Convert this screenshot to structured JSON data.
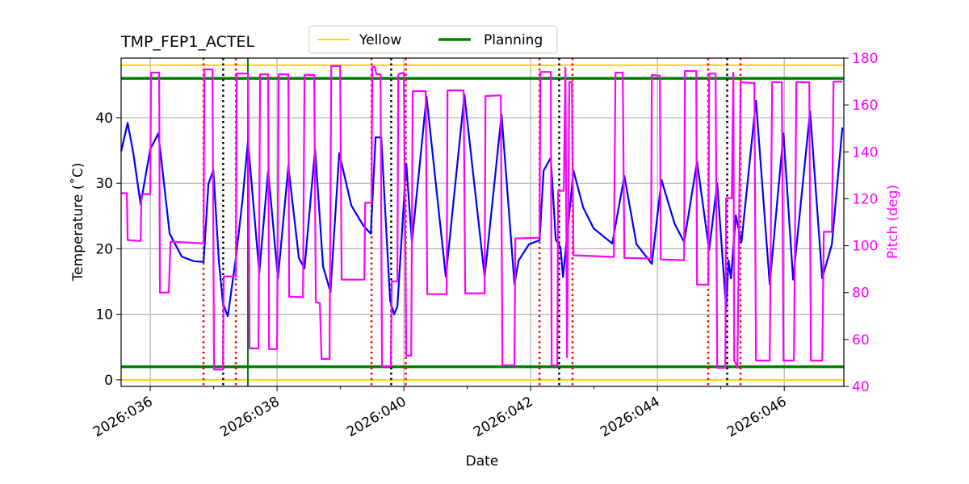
{
  "chart_data": {
    "type": "line",
    "title": "TMP_FEP1_ACTEL",
    "xlabel": "Date",
    "ylabel": "Temperature ($^\\circ$C)",
    "ylabel_display": "Temperature (˚C)",
    "y2label": "Pitch (deg)",
    "xlim": [
      35.54,
      46.94
    ],
    "ylim": [
      -1,
      49.1
    ],
    "y2lim": [
      40,
      180
    ],
    "x_ticks": [
      36,
      38,
      40,
      42,
      44,
      46
    ],
    "x_tick_labels": [
      "2026:036",
      "2026:038",
      "2026:040",
      "2026:042",
      "2026:044",
      "2026:046"
    ],
    "x_minor_ticks": [
      37,
      39,
      41,
      43,
      45
    ],
    "y_ticks": [
      0,
      10,
      20,
      30,
      40
    ],
    "y_tick_labels": [
      "0",
      "10",
      "20",
      "30",
      "40"
    ],
    "y2_ticks": [
      40,
      60,
      80,
      100,
      120,
      140,
      160,
      180
    ],
    "y2_tick_labels": [
      "40",
      "60",
      "80",
      "100",
      "120",
      "140",
      "160",
      "180"
    ],
    "grid": true,
    "legend": {
      "placement": "top-center",
      "entries": [
        {
          "name": "Yellow",
          "color": "#ffd700"
        },
        {
          "name": "Planning",
          "color": "#008000"
        }
      ]
    },
    "colors": {
      "temperature": "#0000ff",
      "pitch": "#ff00ff",
      "yellow": "#ffd700",
      "planning": "#008000",
      "red_lines": "#ff0000",
      "black_lines": "#000000",
      "grid": "#b0b0b0"
    },
    "limits": {
      "yellow": [
        0,
        48
      ],
      "planning": [
        2,
        46
      ]
    },
    "vlines": {
      "green": [
        37.54
      ],
      "red_dotted": [
        36.84,
        37.35,
        39.49,
        40.03,
        42.14,
        42.66,
        44.8,
        45.31
      ],
      "black_dotted": [
        37.15,
        39.8,
        42.45,
        45.1
      ]
    },
    "series": [
      {
        "axis": "left",
        "values": [
          [
            35.541,
            34.9
          ],
          [
            35.643,
            39.2
          ],
          [
            35.732,
            34.6
          ],
          [
            35.847,
            26.8
          ],
          [
            36.0,
            35.2
          ],
          [
            36.127,
            37.6
          ],
          [
            36.306,
            22.3
          ],
          [
            36.497,
            18.8
          ],
          [
            36.688,
            18.1
          ],
          [
            36.841,
            18.0
          ],
          [
            36.917,
            29.9
          ],
          [
            36.994,
            32.0
          ],
          [
            37.083,
            18.0
          ],
          [
            37.146,
            11.7
          ],
          [
            37.223,
            9.7
          ],
          [
            37.35,
            18.6
          ],
          [
            37.452,
            27.2
          ],
          [
            37.541,
            36.4
          ],
          [
            37.72,
            16.4
          ],
          [
            37.86,
            31.9
          ],
          [
            38.013,
            15.5
          ],
          [
            38.178,
            32.6
          ],
          [
            38.344,
            18.6
          ],
          [
            38.433,
            17.0
          ],
          [
            38.599,
            35.2
          ],
          [
            38.726,
            17.3
          ],
          [
            38.841,
            13.4
          ],
          [
            38.981,
            34.6
          ],
          [
            39.172,
            26.6
          ],
          [
            39.363,
            23.5
          ],
          [
            39.478,
            22.3
          ],
          [
            39.554,
            37.0
          ],
          [
            39.643,
            37.0
          ],
          [
            39.783,
            12.1
          ],
          [
            39.847,
            10.0
          ],
          [
            39.898,
            11.2
          ],
          [
            40.038,
            33.0
          ],
          [
            40.127,
            21.0
          ],
          [
            40.357,
            43.2
          ],
          [
            40.662,
            15.7
          ],
          [
            40.955,
            43.5
          ],
          [
            41.274,
            15.7
          ],
          [
            41.541,
            40.5
          ],
          [
            41.745,
            14.6
          ],
          [
            41.809,
            18.2
          ],
          [
            41.975,
            20.7
          ],
          [
            42.14,
            21.3
          ],
          [
            42.204,
            31.9
          ],
          [
            42.318,
            33.9
          ],
          [
            42.395,
            21.4
          ],
          [
            42.471,
            20.2
          ],
          [
            42.51,
            15.7
          ],
          [
            42.675,
            31.9
          ],
          [
            42.828,
            26.3
          ],
          [
            42.994,
            23.1
          ],
          [
            43.287,
            20.8
          ],
          [
            43.478,
            31.1
          ],
          [
            43.669,
            20.7
          ],
          [
            43.911,
            17.7
          ],
          [
            44.064,
            30.5
          ],
          [
            44.268,
            23.9
          ],
          [
            44.42,
            21.0
          ],
          [
            44.624,
            33.3
          ],
          [
            44.815,
            19.8
          ],
          [
            44.943,
            30.0
          ],
          [
            45.083,
            10.9
          ],
          [
            45.121,
            18.2
          ],
          [
            45.159,
            15.5
          ],
          [
            45.236,
            25.1
          ],
          [
            45.325,
            21.0
          ],
          [
            45.554,
            42.6
          ],
          [
            45.771,
            14.6
          ],
          [
            45.987,
            37.6
          ],
          [
            46.14,
            15.3
          ],
          [
            46.408,
            41.0
          ],
          [
            46.599,
            15.5
          ],
          [
            46.752,
            20.7
          ],
          [
            46.917,
            38.5
          ]
        ]
      },
      {
        "axis": "right",
        "values": [
          [
            35.541,
            122.4
          ],
          [
            35.631,
            122.4
          ],
          [
            35.643,
            102.4
          ],
          [
            35.847,
            102.0
          ],
          [
            35.86,
            122.0
          ],
          [
            36.0,
            122.0
          ],
          [
            36.013,
            173.8
          ],
          [
            36.14,
            173.8
          ],
          [
            36.153,
            80.0
          ],
          [
            36.293,
            80.0
          ],
          [
            36.318,
            101.7
          ],
          [
            36.841,
            101.0
          ],
          [
            36.854,
            175.2
          ],
          [
            36.981,
            175.2
          ],
          [
            37.006,
            47.2
          ],
          [
            37.146,
            47.2
          ],
          [
            37.159,
            86.9
          ],
          [
            37.35,
            86.9
          ],
          [
            37.363,
            173.4
          ],
          [
            37.541,
            173.4
          ],
          [
            37.567,
            56.2
          ],
          [
            37.707,
            56.2
          ],
          [
            37.732,
            173.1
          ],
          [
            37.86,
            173.1
          ],
          [
            37.873,
            55.9
          ],
          [
            38.0,
            55.9
          ],
          [
            38.025,
            173.1
          ],
          [
            38.178,
            173.1
          ],
          [
            38.191,
            78.3
          ],
          [
            38.408,
            78.0
          ],
          [
            38.433,
            172.8
          ],
          [
            38.586,
            172.8
          ],
          [
            38.611,
            75.9
          ],
          [
            38.675,
            75.5
          ],
          [
            38.701,
            51.7
          ],
          [
            38.828,
            51.7
          ],
          [
            38.854,
            176.6
          ],
          [
            38.994,
            176.6
          ],
          [
            39.019,
            85.5
          ],
          [
            39.376,
            85.5
          ],
          [
            39.389,
            118.3
          ],
          [
            39.49,
            118.3
          ],
          [
            39.503,
            176.2
          ],
          [
            39.541,
            176.2
          ],
          [
            39.567,
            173.1
          ],
          [
            39.631,
            173.1
          ],
          [
            39.656,
            48.6
          ],
          [
            39.796,
            48.6
          ],
          [
            39.809,
            84.8
          ],
          [
            39.898,
            84.8
          ],
          [
            39.911,
            173.1
          ],
          [
            40.0,
            173.8
          ],
          [
            40.038,
            53.1
          ],
          [
            40.115,
            53.1
          ],
          [
            40.14,
            165.9
          ],
          [
            40.344,
            165.9
          ],
          [
            40.369,
            79.3
          ],
          [
            40.675,
            79.3
          ],
          [
            40.688,
            166.2
          ],
          [
            40.943,
            166.2
          ],
          [
            40.968,
            79.7
          ],
          [
            41.274,
            79.7
          ],
          [
            41.287,
            163.8
          ],
          [
            41.529,
            164.1
          ],
          [
            41.554,
            49.0
          ],
          [
            41.745,
            49.0
          ],
          [
            41.758,
            103.1
          ],
          [
            42.14,
            103.4
          ],
          [
            42.153,
            174.1
          ],
          [
            42.318,
            174.1
          ],
          [
            42.331,
            49.0
          ],
          [
            42.42,
            49.0
          ],
          [
            42.433,
            123.4
          ],
          [
            42.522,
            123.4
          ],
          [
            42.548,
            175.9
          ],
          [
            42.573,
            52.4
          ],
          [
            42.611,
            169.7
          ],
          [
            42.65,
            169.7
          ],
          [
            42.675,
            95.9
          ],
          [
            43.312,
            95.2
          ],
          [
            43.338,
            173.8
          ],
          [
            43.452,
            173.8
          ],
          [
            43.478,
            94.8
          ],
          [
            43.898,
            94.5
          ],
          [
            43.911,
            172.8
          ],
          [
            44.038,
            172.5
          ],
          [
            44.051,
            94.1
          ],
          [
            44.42,
            93.8
          ],
          [
            44.433,
            174.5
          ],
          [
            44.611,
            174.5
          ],
          [
            44.624,
            83.4
          ],
          [
            44.803,
            83.4
          ],
          [
            44.815,
            173.4
          ],
          [
            44.917,
            173.4
          ],
          [
            44.943,
            47.9
          ],
          [
            45.07,
            47.9
          ],
          [
            45.083,
            120.3
          ],
          [
            45.172,
            120.3
          ],
          [
            45.197,
            173.8
          ],
          [
            45.21,
            51.0
          ],
          [
            45.248,
            49.0
          ],
          [
            45.261,
            47.9
          ],
          [
            45.312,
            169.7
          ],
          [
            45.529,
            169.3
          ],
          [
            45.554,
            51.0
          ],
          [
            45.771,
            51.0
          ],
          [
            45.809,
            169.7
          ],
          [
            45.962,
            169.7
          ],
          [
            45.987,
            51.0
          ],
          [
            46.153,
            51.0
          ],
          [
            46.191,
            169.7
          ],
          [
            46.395,
            169.7
          ],
          [
            46.42,
            51.0
          ],
          [
            46.599,
            51.0
          ],
          [
            46.624,
            105.9
          ],
          [
            46.752,
            105.9
          ],
          [
            46.777,
            170.0
          ],
          [
            46.917,
            170.0
          ]
        ]
      }
    ]
  }
}
